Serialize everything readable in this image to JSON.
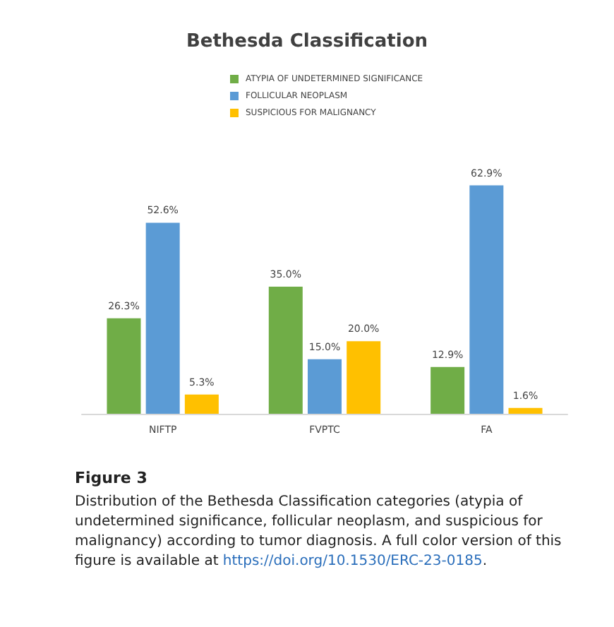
{
  "chart_data": {
    "type": "bar",
    "title": "Bethesda Classification",
    "categories": [
      "NIFTP",
      "FVPTC",
      "FA"
    ],
    "series": [
      {
        "name": "ATYPIA OF UNDETERMINED SIGNIFICANCE",
        "color": "#70ad47",
        "values": [
          26.3,
          35.0,
          12.9
        ],
        "value_labels": [
          "26.3%",
          "35.0%",
          "12.9%"
        ]
      },
      {
        "name": "FOLLICULAR NEOPLASM",
        "color": "#5b9bd5",
        "values": [
          52.6,
          15.0,
          62.9
        ],
        "value_labels": [
          "52.6%",
          "15.0%",
          "62.9%"
        ]
      },
      {
        "name": "SUSPICIOUS FOR MALIGNANCY",
        "color": "#ffc000",
        "values": [
          5.3,
          20.0,
          1.6
        ],
        "value_labels": [
          "5.3%",
          "20.0%",
          "1.6%"
        ]
      }
    ],
    "legend": "top left",
    "annotations": [
      "Figure 3",
      "Distribution of the Bethesda Classification categories (atypia of undetermined significance, follicular neoplasm, and suspicious for malignancy) according to tumor diagnosis. A full color version of this figure is available at https://doi.org/10.1530/ERC-23-0185."
    ]
  }
}
